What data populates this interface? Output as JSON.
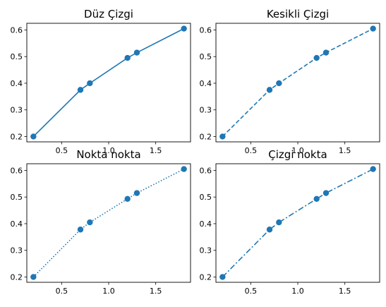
{
  "chart_data": [
    {
      "type": "line",
      "title": "Düz Çizgi",
      "linestyle": "solid",
      "color": "#1f77b4",
      "marker": "circle",
      "x": [
        0.2,
        0.7,
        0.8,
        1.2,
        1.3,
        1.8
      ],
      "y": [
        0.2,
        0.375,
        0.4,
        0.495,
        0.515,
        0.605
      ],
      "xlim": [
        0.13,
        1.87
      ],
      "ylim": [
        0.18,
        0.625
      ],
      "xticks": [
        0.5,
        1.0,
        1.5
      ],
      "xtick_labels": [
        "0.5",
        "1.0",
        "1.5"
      ],
      "yticks": [
        0.2,
        0.3,
        0.4,
        0.5,
        0.6
      ],
      "ytick_labels": [
        "0.2",
        "0.3",
        "0.4",
        "0.5",
        "0.6"
      ],
      "xlabel": "",
      "ylabel": "",
      "grid": false
    },
    {
      "type": "line",
      "title": "Kesikli Çizgi",
      "linestyle": "dashed",
      "color": "#1f77b4",
      "marker": "circle",
      "x": [
        0.2,
        0.7,
        0.8,
        1.2,
        1.3,
        1.8
      ],
      "y": [
        0.2,
        0.375,
        0.4,
        0.495,
        0.515,
        0.605
      ],
      "xlim": [
        0.13,
        1.87
      ],
      "ylim": [
        0.18,
        0.625
      ],
      "xticks": [
        0.5,
        1.0,
        1.5
      ],
      "xtick_labels": [
        "0.5",
        "1.0",
        "1.5"
      ],
      "yticks": [
        0.2,
        0.3,
        0.4,
        0.5,
        0.6
      ],
      "ytick_labels": [
        "0.2",
        "0.3",
        "0.4",
        "0.5",
        "0.6"
      ],
      "xlabel": "",
      "ylabel": "",
      "grid": false
    },
    {
      "type": "line",
      "title": "Nokta nokta",
      "linestyle": "dotted",
      "color": "#1f77b4",
      "marker": "circle",
      "x": [
        0.2,
        0.7,
        0.8,
        1.2,
        1.3,
        1.8
      ],
      "y": [
        0.2,
        0.378,
        0.405,
        0.493,
        0.515,
        0.605
      ],
      "xlim": [
        0.13,
        1.87
      ],
      "ylim": [
        0.18,
        0.625
      ],
      "xticks": [
        0.5,
        1.0,
        1.5
      ],
      "xtick_labels": [
        "0.5",
        "1.0",
        "1.5"
      ],
      "yticks": [
        0.2,
        0.3,
        0.4,
        0.5,
        0.6
      ],
      "ytick_labels": [
        "0.2",
        "0.3",
        "0.4",
        "0.5",
        "0.6"
      ],
      "xlabel": "",
      "ylabel": "",
      "grid": false
    },
    {
      "type": "line",
      "title": "Çizgi nokta",
      "linestyle": "dashdot",
      "color": "#1f77b4",
      "marker": "circle",
      "x": [
        0.2,
        0.7,
        0.8,
        1.2,
        1.3,
        1.8
      ],
      "y": [
        0.2,
        0.378,
        0.405,
        0.493,
        0.515,
        0.605
      ],
      "xlim": [
        0.13,
        1.87
      ],
      "ylim": [
        0.18,
        0.625
      ],
      "xticks": [
        0.5,
        1.0,
        1.5
      ],
      "xtick_labels": [
        "0.5",
        "1.0",
        "1.5"
      ],
      "yticks": [
        0.2,
        0.3,
        0.4,
        0.5,
        0.6
      ],
      "ytick_labels": [
        "0.2",
        "0.3",
        "0.4",
        "0.5",
        "0.6"
      ],
      "xlabel": "",
      "ylabel": "",
      "grid": false
    }
  ]
}
